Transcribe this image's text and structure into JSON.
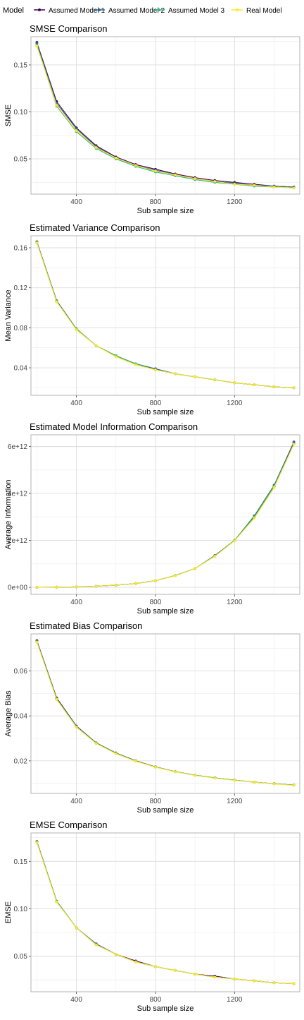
{
  "legend": {
    "title": "Model",
    "items": [
      {
        "label": "Assumed Model 1",
        "color": "#440154"
      },
      {
        "label": "Assumed Model 2",
        "color": "#31688e"
      },
      {
        "label": "Assumed Model 3",
        "color": "#35b779"
      },
      {
        "label": "Real Model",
        "color": "#fde725"
      }
    ]
  },
  "chart_data": [
    {
      "type": "line",
      "title": "SMSE Comparison",
      "xlabel": "Sub sample size",
      "ylabel": "SMSE",
      "x": [
        200,
        300,
        400,
        500,
        600,
        700,
        800,
        900,
        1000,
        1100,
        1200,
        1300,
        1400,
        1500
      ],
      "xlim": [
        170,
        1530
      ],
      "ylim": [
        0.0125,
        0.18
      ],
      "xticks": [
        {
          "v": 400,
          "label": "400"
        },
        {
          "v": 800,
          "label": "800"
        },
        {
          "v": 1200,
          "label": "1200"
        }
      ],
      "yticks": [
        {
          "v": 0.05,
          "label": "0.05"
        },
        {
          "v": 0.1,
          "label": "0.10"
        },
        {
          "v": 0.15,
          "label": "0.15"
        }
      ],
      "grid": true,
      "series": [
        {
          "name": "Assumed Model 1",
          "values": [
            0.174,
            0.111,
            0.083,
            0.064,
            0.052,
            0.044,
            0.039,
            0.034,
            0.03,
            0.027,
            0.025,
            0.023,
            0.021,
            0.02
          ]
        },
        {
          "name": "Assumed Model 2",
          "values": [
            0.173,
            0.109,
            0.082,
            0.063,
            0.051,
            0.043,
            0.038,
            0.033,
            0.029,
            0.026,
            0.024,
            0.022,
            0.021,
            0.02
          ]
        },
        {
          "name": "Assumed Model 3",
          "values": [
            0.171,
            0.106,
            0.079,
            0.061,
            0.05,
            0.042,
            0.036,
            0.032,
            0.028,
            0.025,
            0.023,
            0.021,
            0.02,
            0.019
          ]
        },
        {
          "name": "Real Model",
          "values": [
            0.17,
            0.107,
            0.08,
            0.062,
            0.051,
            0.043,
            0.037,
            0.033,
            0.029,
            0.026,
            0.023,
            0.022,
            0.02,
            0.019
          ]
        }
      ]
    },
    {
      "type": "line",
      "title": "Estimated Variance Comparison",
      "xlabel": "Sub sample size",
      "ylabel": "Mean Variance",
      "x": [
        200,
        300,
        400,
        500,
        600,
        700,
        800,
        900,
        1000,
        1100,
        1200,
        1300,
        1400,
        1500
      ],
      "xlim": [
        170,
        1530
      ],
      "ylim": [
        0.0125,
        0.172
      ],
      "xticks": [
        {
          "v": 400,
          "label": "400"
        },
        {
          "v": 800,
          "label": "800"
        },
        {
          "v": 1200,
          "label": "1200"
        }
      ],
      "yticks": [
        {
          "v": 0.04,
          "label": "0.04"
        },
        {
          "v": 0.08,
          "label": "0.08"
        },
        {
          "v": 0.12,
          "label": "0.12"
        },
        {
          "v": 0.16,
          "label": "0.16"
        }
      ],
      "grid": true,
      "series": [
        {
          "name": "Assumed Model 1",
          "values": [
            0.166,
            0.107,
            0.079,
            0.062,
            0.052,
            0.044,
            0.039,
            0.034,
            0.031,
            0.028,
            0.025,
            0.023,
            0.021,
            0.02
          ]
        },
        {
          "name": "Assumed Model 2",
          "values": [
            0.166,
            0.107,
            0.079,
            0.062,
            0.052,
            0.044,
            0.039,
            0.034,
            0.031,
            0.028,
            0.025,
            0.023,
            0.021,
            0.02
          ]
        },
        {
          "name": "Assumed Model 3",
          "values": [
            0.165,
            0.106,
            0.079,
            0.062,
            0.052,
            0.044,
            0.038,
            0.034,
            0.031,
            0.028,
            0.025,
            0.023,
            0.021,
            0.02
          ]
        },
        {
          "name": "Real Model",
          "values": [
            0.165,
            0.106,
            0.078,
            0.062,
            0.051,
            0.043,
            0.038,
            0.034,
            0.031,
            0.028,
            0.025,
            0.023,
            0.021,
            0.02
          ]
        }
      ]
    },
    {
      "type": "line",
      "title": "Estimated Model Information Comparison",
      "xlabel": "Sub sample size",
      "ylabel": "Average Information",
      "x": [
        200,
        300,
        400,
        500,
        600,
        700,
        800,
        900,
        1000,
        1100,
        1200,
        1300,
        1400,
        1500
      ],
      "xlim": [
        170,
        1530
      ],
      "ylim": [
        -300000000000.0,
        6500000000000.0
      ],
      "xticks": [
        {
          "v": 400,
          "label": "400"
        },
        {
          "v": 800,
          "label": "800"
        },
        {
          "v": 1200,
          "label": "1200"
        }
      ],
      "yticks": [
        {
          "v": 0,
          "label": "0e+00"
        },
        {
          "v": 2000000000000.0,
          "label": "2e+12"
        },
        {
          "v": 4000000000000.0,
          "label": "4e+12"
        },
        {
          "v": 6000000000000.0,
          "label": "6e+12"
        }
      ],
      "grid": true,
      "series": [
        {
          "name": "Assumed Model 1",
          "values": [
            2000000000.0,
            6000000000.0,
            20000000000.0,
            50000000000.0,
            90000000000.0,
            160000000000.0,
            280000000000.0,
            500000000000.0,
            800000000000.0,
            1350000000000.0,
            2000000000000.0,
            3000000000000.0,
            4300000000000.0,
            6150000000000.0
          ]
        },
        {
          "name": "Assumed Model 2",
          "values": [
            2000000000.0,
            6000000000.0,
            20000000000.0,
            50000000000.0,
            90000000000.0,
            160000000000.0,
            280000000000.0,
            500000000000.0,
            800000000000.0,
            1350000000000.0,
            2000000000000.0,
            3050000000000.0,
            4350000000000.0,
            6200000000000.0
          ]
        },
        {
          "name": "Assumed Model 3",
          "values": [
            2000000000.0,
            6000000000.0,
            20000000000.0,
            50000000000.0,
            90000000000.0,
            160000000000.0,
            280000000000.0,
            500000000000.0,
            800000000000.0,
            1330000000000.0,
            2000000000000.0,
            3000000000000.0,
            4300000000000.0,
            6100000000000.0
          ]
        },
        {
          "name": "Real Model",
          "values": [
            2000000000.0,
            6000000000.0,
            20000000000.0,
            50000000000.0,
            90000000000.0,
            160000000000.0,
            280000000000.0,
            490000000000.0,
            800000000000.0,
            1320000000000.0,
            1980000000000.0,
            2950000000000.0,
            4250000000000.0,
            6100000000000.0
          ]
        }
      ]
    },
    {
      "type": "line",
      "title": "Estimated Bias Comparison",
      "xlabel": "Sub sample size",
      "ylabel": "Average Bias",
      "x": [
        200,
        300,
        400,
        500,
        600,
        700,
        800,
        900,
        1000,
        1100,
        1200,
        1300,
        1400,
        1500
      ],
      "xlim": [
        170,
        1530
      ],
      "ylim": [
        0.0055,
        0.0765
      ],
      "xticks": [
        {
          "v": 400,
          "label": "400"
        },
        {
          "v": 800,
          "label": "800"
        },
        {
          "v": 1200,
          "label": "1200"
        }
      ],
      "yticks": [
        {
          "v": 0.02,
          "label": "0.02"
        },
        {
          "v": 0.04,
          "label": "0.04"
        },
        {
          "v": 0.06,
          "label": "0.06"
        }
      ],
      "grid": true,
      "series": [
        {
          "name": "Assumed Model 1",
          "values": [
            0.0735,
            0.048,
            0.0355,
            0.028,
            0.0235,
            0.02,
            0.0173,
            0.0152,
            0.0136,
            0.0124,
            0.0114,
            0.0105,
            0.0098,
            0.0092
          ]
        },
        {
          "name": "Assumed Model 2",
          "values": [
            0.0733,
            0.0477,
            0.0354,
            0.028,
            0.0234,
            0.0199,
            0.0173,
            0.0152,
            0.0136,
            0.0124,
            0.0114,
            0.0105,
            0.0098,
            0.0092
          ]
        },
        {
          "name": "Assumed Model 3",
          "values": [
            0.073,
            0.0475,
            0.035,
            0.0278,
            0.0233,
            0.0199,
            0.0172,
            0.0152,
            0.0136,
            0.0124,
            0.0114,
            0.0105,
            0.0098,
            0.0092
          ]
        },
        {
          "name": "Real Model",
          "values": [
            0.0728,
            0.0473,
            0.035,
            0.0277,
            0.0232,
            0.0198,
            0.0172,
            0.0151,
            0.0135,
            0.0123,
            0.0113,
            0.0105,
            0.0097,
            0.0091
          ]
        }
      ]
    },
    {
      "type": "line",
      "title": "EMSE Comparison",
      "xlabel": "Sub sample size",
      "ylabel": "EMSE",
      "x": [
        200,
        300,
        400,
        500,
        600,
        700,
        800,
        900,
        1000,
        1100,
        1200,
        1300,
        1400,
        1500
      ],
      "xlim": [
        170,
        1530
      ],
      "ylim": [
        0.0125,
        0.18
      ],
      "xticks": [
        {
          "v": 400,
          "label": "400"
        },
        {
          "v": 800,
          "label": "800"
        },
        {
          "v": 1200,
          "label": "1200"
        }
      ],
      "yticks": [
        {
          "v": 0.05,
          "label": "0.05"
        },
        {
          "v": 0.1,
          "label": "0.10"
        },
        {
          "v": 0.15,
          "label": "0.15"
        }
      ],
      "grid": true,
      "series": [
        {
          "name": "Assumed Model 1",
          "values": [
            0.171,
            0.108,
            0.08,
            0.063,
            0.052,
            0.045,
            0.039,
            0.035,
            0.031,
            0.029,
            0.026,
            0.024,
            0.022,
            0.021
          ]
        },
        {
          "name": "Assumed Model 2",
          "values": [
            0.171,
            0.108,
            0.08,
            0.063,
            0.052,
            0.044,
            0.039,
            0.035,
            0.031,
            0.028,
            0.026,
            0.024,
            0.022,
            0.021
          ]
        },
        {
          "name": "Assumed Model 3",
          "values": [
            0.17,
            0.108,
            0.08,
            0.062,
            0.052,
            0.044,
            0.039,
            0.035,
            0.031,
            0.028,
            0.026,
            0.024,
            0.022,
            0.021
          ]
        },
        {
          "name": "Real Model",
          "values": [
            0.17,
            0.107,
            0.08,
            0.062,
            0.052,
            0.044,
            0.039,
            0.035,
            0.031,
            0.028,
            0.026,
            0.024,
            0.022,
            0.021
          ]
        }
      ]
    }
  ]
}
